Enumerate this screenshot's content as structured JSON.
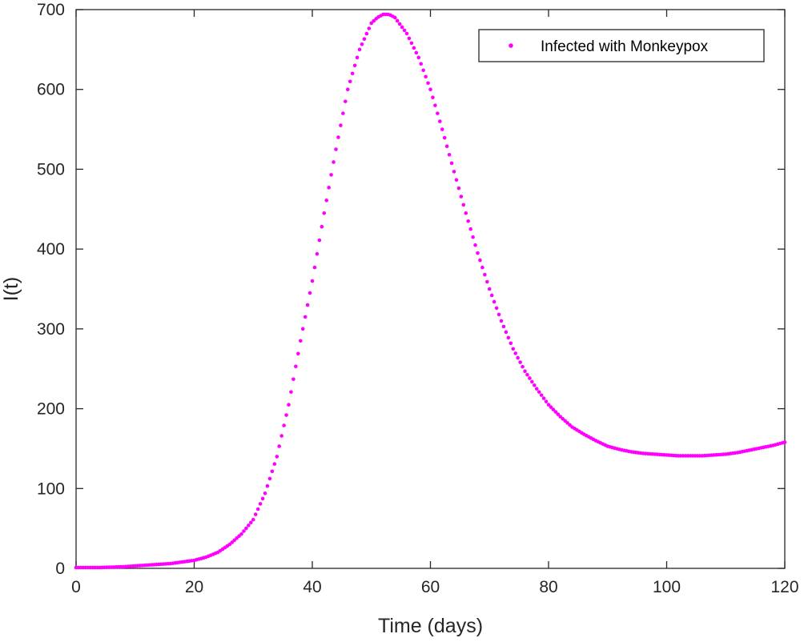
{
  "chart_data": {
    "type": "scatter",
    "xlabel": "Time (days)",
    "ylabel": "I(t)",
    "xlim": [
      0,
      120
    ],
    "ylim": [
      0,
      700
    ],
    "xticks": [
      0,
      20,
      40,
      60,
      80,
      100,
      120
    ],
    "yticks": [
      0,
      100,
      200,
      300,
      400,
      500,
      600,
      700
    ],
    "grid": false,
    "legend_position": "top-right",
    "series": [
      {
        "name": "Infected with Monkeypox",
        "color": "#ff00ff",
        "marker": "dot",
        "x": [
          0,
          2,
          4,
          6,
          8,
          10,
          12,
          14,
          16,
          18,
          20,
          22,
          24,
          26,
          28,
          30,
          32,
          34,
          36,
          38,
          40,
          42,
          44,
          46,
          48,
          50,
          51,
          52,
          53,
          54,
          56,
          58,
          60,
          62,
          64,
          66,
          68,
          70,
          72,
          74,
          76,
          78,
          80,
          82,
          84,
          86,
          88,
          90,
          92,
          94,
          96,
          98,
          100,
          102,
          104,
          106,
          108,
          110,
          112,
          114,
          116,
          118,
          120
        ],
        "y": [
          1,
          1,
          1,
          1.5,
          2,
          3,
          4,
          5,
          6,
          8,
          10,
          14,
          20,
          30,
          43,
          61,
          94,
          140,
          205,
          285,
          360,
          445,
          525,
          600,
          650,
          683,
          690,
          694,
          694,
          690,
          670,
          640,
          600,
          550,
          497,
          445,
          395,
          350,
          310,
          275,
          247,
          225,
          205,
          190,
          177,
          168,
          160,
          153,
          149,
          146,
          144,
          143,
          142,
          141,
          141,
          141,
          142,
          143,
          145,
          148,
          151,
          154,
          158
        ]
      }
    ]
  }
}
